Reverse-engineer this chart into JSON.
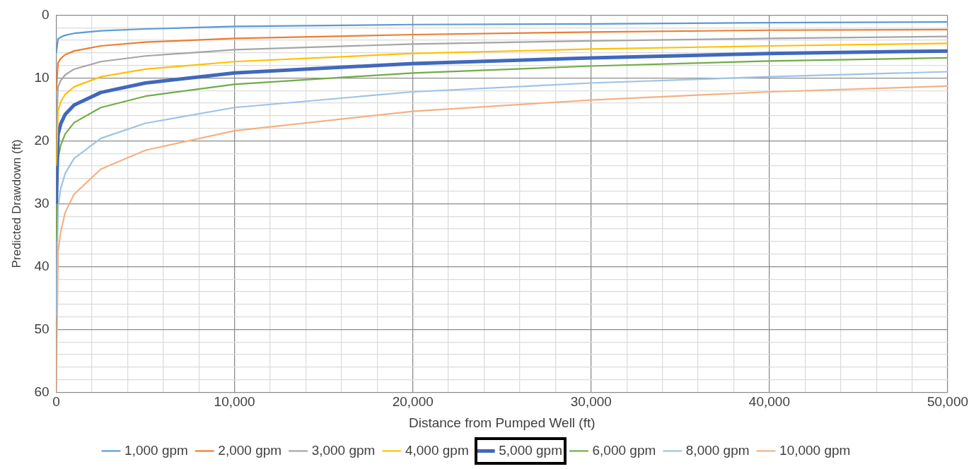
{
  "chart_data": {
    "type": "line",
    "xlabel": "Distance from Pumped Well (ft)",
    "ylabel": "Predicted Drawdown (ft)",
    "x": [
      1,
      100,
      250,
      500,
      1000,
      2500,
      5000,
      10000,
      20000,
      30000,
      40000,
      50000
    ],
    "series": [
      {
        "name": "1,000 gpm",
        "color": "#5b9bd5",
        "values": [
          6.0,
          3.8,
          3.5,
          3.2,
          2.9,
          2.5,
          2.2,
          1.8,
          1.5,
          1.4,
          1.2,
          1.1
        ]
      },
      {
        "name": "2,000 gpm",
        "color": "#ed7d31",
        "values": [
          12,
          7.6,
          6.9,
          6.3,
          5.7,
          4.9,
          4.3,
          3.7,
          3.1,
          2.7,
          2.4,
          2.3
        ]
      },
      {
        "name": "3,000 gpm",
        "color": "#a5a5a5",
        "values": [
          18,
          11.4,
          10.4,
          9.5,
          8.6,
          7.4,
          6.5,
          5.5,
          4.6,
          4.1,
          3.7,
          3.4
        ]
      },
      {
        "name": "4,000 gpm",
        "color": "#ffc000",
        "values": [
          24,
          15.2,
          13.8,
          12.6,
          11.4,
          9.8,
          8.6,
          7.4,
          6.1,
          5.4,
          4.9,
          4.5
        ]
      },
      {
        "name": "5,000 gpm",
        "color": "#4068bd",
        "values": [
          30,
          19,
          17.3,
          15.8,
          14.3,
          12.3,
          10.8,
          9.2,
          7.7,
          6.8,
          6.1,
          5.7
        ]
      },
      {
        "name": "6,000 gpm",
        "color": "#70ad47",
        "values": [
          36,
          22.8,
          20.7,
          18.9,
          17.1,
          14.7,
          12.9,
          11.0,
          9.2,
          8.1,
          7.3,
          6.8
        ]
      },
      {
        "name": "8,000 gpm",
        "color": "#9dc3e6",
        "values": [
          48,
          30.4,
          27.6,
          25.2,
          22.8,
          19.6,
          17.2,
          14.7,
          12.2,
          10.8,
          9.8,
          9.0
        ]
      },
      {
        "name": "10,000 gpm",
        "color": "#f4b183",
        "values": [
          60,
          37.7,
          34.5,
          31.4,
          28.5,
          24.5,
          21.5,
          18.4,
          15.3,
          13.5,
          12.2,
          11.3
        ]
      }
    ],
    "xlim": [
      0,
      50000
    ],
    "xticks": [
      0,
      {
        "value": 2000,
        "label": null
      },
      {
        "value": 4000,
        "label": null
      },
      {
        "value": 6000,
        "label": null
      },
      {
        "value": 8000,
        "label": null
      },
      {
        "value": 10000,
        "label": "10,000"
      },
      {
        "value": 12000,
        "label": null
      },
      {
        "value": 14000,
        "label": null
      },
      {
        "value": 16000,
        "label": null
      },
      {
        "value": 18000,
        "label": null
      },
      {
        "value": 20000,
        "label": "20,000"
      },
      {
        "value": 22000,
        "label": null
      },
      {
        "value": 24000,
        "label": null
      },
      {
        "value": 26000,
        "label": null
      },
      {
        "value": 28000,
        "label": null
      },
      {
        "value": 30000,
        "label": "30,000"
      },
      {
        "value": 32000,
        "label": null
      },
      {
        "value": 34000,
        "label": null
      },
      {
        "value": 36000,
        "label": null
      },
      {
        "value": 38000,
        "label": null
      },
      {
        "value": 40000,
        "label": "40,000"
      },
      {
        "value": 42000,
        "label": null
      },
      {
        "value": 44000,
        "label": null
      },
      {
        "value": 46000,
        "label": null
      },
      {
        "value": 48000,
        "label": null
      },
      {
        "value": 50000,
        "label": "50,000"
      }
    ],
    "ylim": [
      60,
      0
    ],
    "yticks": [
      0,
      {
        "value": 2,
        "label": null
      },
      {
        "value": 4,
        "label": null
      },
      {
        "value": 6,
        "label": null
      },
      {
        "value": 8,
        "label": null
      },
      10,
      {
        "value": 12,
        "label": null
      },
      {
        "value": 14,
        "label": null
      },
      {
        "value": 16,
        "label": null
      },
      {
        "value": 18,
        "label": null
      },
      20,
      {
        "value": 22,
        "label": null
      },
      {
        "value": 24,
        "label": null
      },
      {
        "value": 26,
        "label": null
      },
      {
        "value": 28,
        "label": null
      },
      30,
      {
        "value": 32,
        "label": null
      },
      {
        "value": 34,
        "label": null
      },
      {
        "value": 36,
        "label": null
      },
      {
        "value": 38,
        "label": null
      },
      40,
      {
        "value": 42,
        "label": null
      },
      {
        "value": 44,
        "label": null
      },
      {
        "value": 46,
        "label": null
      },
      {
        "value": 48,
        "label": null
      },
      50,
      {
        "value": 52,
        "label": null
      },
      {
        "value": 54,
        "label": null
      },
      {
        "value": 56,
        "label": null
      },
      {
        "value": 58,
        "label": null
      },
      60
    ],
    "grid": true,
    "legend": "bottom",
    "marker": "none",
    "line_style": "solid"
  }
}
